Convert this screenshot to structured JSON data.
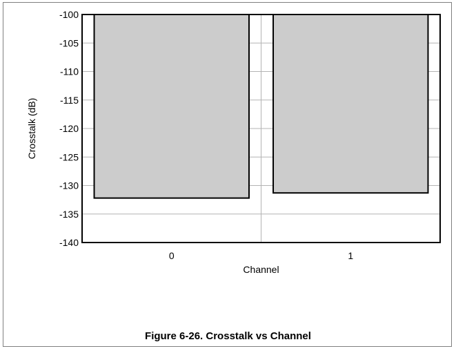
{
  "figure_caption": "Figure 6-26. Crosstalk vs Channel",
  "colors": {
    "bar_fill": "#cccccc",
    "bar_stroke": "#000000",
    "grid": "#b3b3b3",
    "axis": "#000000"
  },
  "chart_data": {
    "type": "bar",
    "title": "",
    "xlabel": "Channel",
    "ylabel": "Crosstalk (dB)",
    "categories": [
      "0",
      "1"
    ],
    "values": [
      -132.2,
      -131.3
    ],
    "bar_base": -100,
    "ylim": [
      -140,
      -100
    ],
    "yticks": [
      -100,
      -105,
      -110,
      -115,
      -120,
      -125,
      -130,
      -135,
      -140
    ],
    "ytick_labels": [
      "-100",
      "-105",
      "-110",
      "-115",
      "-120",
      "-125",
      "-130",
      "-135",
      "-140"
    ],
    "grid": true,
    "legend": "none"
  }
}
